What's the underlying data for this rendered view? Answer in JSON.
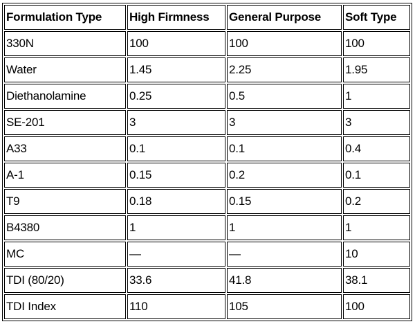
{
  "table": {
    "header": [
      "Formulation Type",
      "High Firmness",
      "General Purpose",
      "Soft Type"
    ],
    "rows": [
      [
        "330N",
        "100",
        "100",
        "100"
      ],
      [
        "Water",
        "1.45",
        "2.25",
        "1.95"
      ],
      [
        "Diethanolamine",
        "0.25",
        "0.5",
        "1"
      ],
      [
        "SE-201",
        "3",
        "3",
        "3"
      ],
      [
        "A33",
        "0.1",
        "0.1",
        "0.4"
      ],
      [
        "A-1",
        "0.15",
        "0.2",
        "0.1"
      ],
      [
        "T9",
        "0.18",
        "0.15",
        "0.2"
      ],
      [
        "B4380",
        "1",
        "1",
        "1"
      ],
      [
        "MC",
        "—",
        "—",
        "10"
      ],
      [
        "TDI (80/20)",
        "33.6",
        "41.8",
        "38.1"
      ],
      [
        "TDI Index",
        "110",
        "105",
        "100"
      ]
    ]
  }
}
